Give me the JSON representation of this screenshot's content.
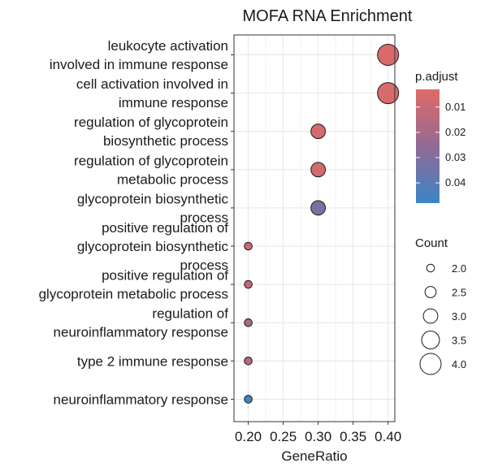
{
  "chart_data": {
    "type": "scatter",
    "title": "MOFA RNA Enrichment",
    "xlabel": "GeneRatio",
    "ylabel": "",
    "xlim": [
      0.19,
      0.405
    ],
    "xticks": [
      "0.20",
      "0.25",
      "0.30",
      "0.35",
      "0.40"
    ],
    "xtick_values": [
      0.2,
      0.25,
      0.3,
      0.35,
      0.4
    ],
    "grid": true,
    "categories": [
      [
        "leukocyte activation",
        "involved in immune response"
      ],
      [
        "cell activation involved in",
        "immune response"
      ],
      [
        "regulation of glycoprotein",
        "biosynthetic process"
      ],
      [
        "regulation of glycoprotein",
        "metabolic process"
      ],
      [
        "glycoprotein biosynthetic",
        "process"
      ],
      [
        "positive regulation of",
        "glycoprotein biosynthetic",
        "process"
      ],
      [
        "positive regulation of",
        "glycoprotein metabolic process"
      ],
      [
        "regulation of",
        "neuroinflammatory response"
      ],
      [
        "type 2 immune response"
      ],
      [
        "neuroinflammatory response"
      ]
    ],
    "points": [
      {
        "gene_ratio": 0.4,
        "count": 4,
        "p_adjust": 0.005
      },
      {
        "gene_ratio": 0.4,
        "count": 4,
        "p_adjust": 0.005
      },
      {
        "gene_ratio": 0.3,
        "count": 3,
        "p_adjust": 0.007
      },
      {
        "gene_ratio": 0.3,
        "count": 3,
        "p_adjust": 0.007
      },
      {
        "gene_ratio": 0.3,
        "count": 3,
        "p_adjust": 0.031
      },
      {
        "gene_ratio": 0.2,
        "count": 2,
        "p_adjust": 0.01
      },
      {
        "gene_ratio": 0.2,
        "count": 2,
        "p_adjust": 0.012
      },
      {
        "gene_ratio": 0.2,
        "count": 2,
        "p_adjust": 0.02
      },
      {
        "gene_ratio": 0.2,
        "count": 2,
        "p_adjust": 0.015
      },
      {
        "gene_ratio": 0.2,
        "count": 2,
        "p_adjust": 0.047
      }
    ],
    "color_legend": {
      "title": "p.adjust",
      "range": [
        0.003,
        0.048
      ],
      "tick_values": [
        0.01,
        0.02,
        0.03,
        0.04
      ],
      "tick_labels": [
        "0.01",
        "0.02",
        "0.03",
        "0.04"
      ],
      "low_color": "#e06a66",
      "mid_color": "#8a6b9a",
      "high_color": "#3a86c6"
    },
    "size_legend": {
      "title": "Count",
      "values": [
        2.0,
        2.5,
        3.0,
        3.5,
        4.0
      ],
      "labels": [
        "2.0",
        "2.5",
        "3.0",
        "3.5",
        "4.0"
      ]
    }
  }
}
